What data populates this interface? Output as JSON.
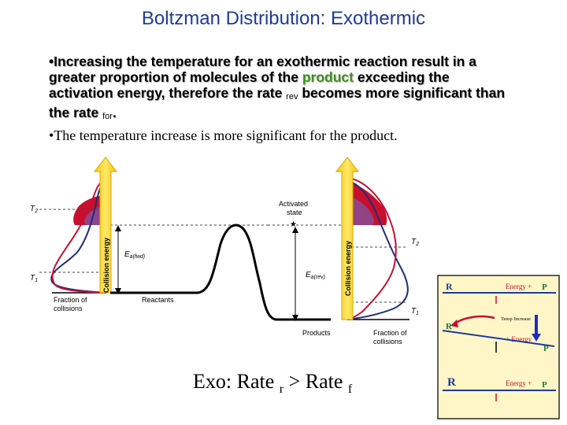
{
  "title": "Boltzman Distribution: Exothermic",
  "bullet1": {
    "marker": "•",
    "part1": "Increasing the temperature for an exothermic reaction result in a greater proportion of molecules of the ",
    "highlight": "product",
    "part2": " exceeding the activation energy, therefore the rate ",
    "sub_rev": "rev",
    "part3": "  becomes more significant than the rate ",
    "sub_for": "for",
    "part4": "."
  },
  "bullet2": {
    "marker": "•",
    "text": "The temperature increase is more significant for the product."
  },
  "diagram": {
    "t2_left": "T",
    "t2_left_sub": "2",
    "t1_left": "T",
    "t1_left_sub": "1",
    "collision_energy_left": "Collision energy",
    "ea_fwd": "E",
    "ea_fwd_sub": "a(fwd)",
    "fraction_left_1": "Fraction of",
    "fraction_left_2": "collisions",
    "reactants": "Reactants",
    "activated_1": "Activated",
    "activated_2": "state",
    "ea_rev": "E",
    "ea_rev_sub": "a(rev)",
    "collision_energy_right": "Collision energy",
    "t2_right": "T",
    "t2_right_sub": "2",
    "t1_right": "T",
    "t1_right_sub": "1",
    "products": "Products",
    "fraction_right_1": "Fraction of",
    "fraction_right_2": "collisions"
  },
  "inset": {
    "r1": "R",
    "energy1": "Energy  +",
    "p1": "P",
    "temp_increase": "Temp Increase",
    "r2": "R",
    "energy2": "+  Energy",
    "p2": "P",
    "r3": "R",
    "energy3": "Energy  +",
    "p3": "P"
  },
  "caption": {
    "part1": "Exo: Rate ",
    "sub1": "r",
    "part2": " > Rate ",
    "sub2": "f"
  },
  "colors": {
    "title": "#1f3b9a",
    "product_text": "#3f8f1f",
    "bullet2_product": "#b8002e",
    "arrow_yellow": "#f6d21f",
    "curve_red": "#c8102e",
    "curve_blue": "#1f2d7a",
    "inset_bg": "#fff6c8"
  }
}
